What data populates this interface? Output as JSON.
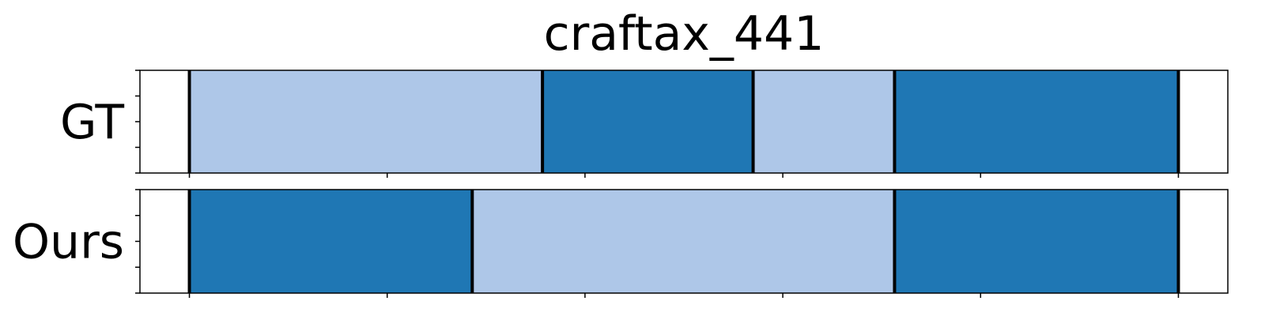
{
  "chart_data": {
    "type": "bar",
    "title": "craftax_441",
    "xlim": [
      0,
      1.1
    ],
    "rows": [
      {
        "label": "GT",
        "segments": [
          {
            "start": 0.05,
            "end": 0.407,
            "color": "#aec7e8"
          },
          {
            "start": 0.407,
            "end": 0.62,
            "color": "#1f77b4"
          },
          {
            "start": 0.62,
            "end": 0.763,
            "color": "#aec7e8"
          },
          {
            "start": 0.763,
            "end": 1.05,
            "color": "#1f77b4"
          }
        ],
        "boundaries": [
          0.05,
          0.407,
          0.62,
          0.763,
          1.05
        ]
      },
      {
        "label": "Ours",
        "segments": [
          {
            "start": 0.05,
            "end": 0.336,
            "color": "#1f77b4"
          },
          {
            "start": 0.336,
            "end": 0.763,
            "color": "#aec7e8"
          },
          {
            "start": 0.763,
            "end": 1.05,
            "color": "#1f77b4"
          }
        ],
        "boundaries": [
          0.05,
          0.336,
          0.763,
          1.05
        ]
      }
    ],
    "x_ticks": [
      0.05,
      0.25,
      0.45,
      0.65,
      0.85,
      1.05
    ],
    "y_ticks": [
      0,
      0.25,
      0.5,
      0.75,
      1.0
    ],
    "tick_labels_shown": false,
    "grid": false,
    "legend": "none",
    "colors": {
      "light": "#aec7e8",
      "dark": "#1f77b4",
      "boundary": "#000000"
    }
  }
}
